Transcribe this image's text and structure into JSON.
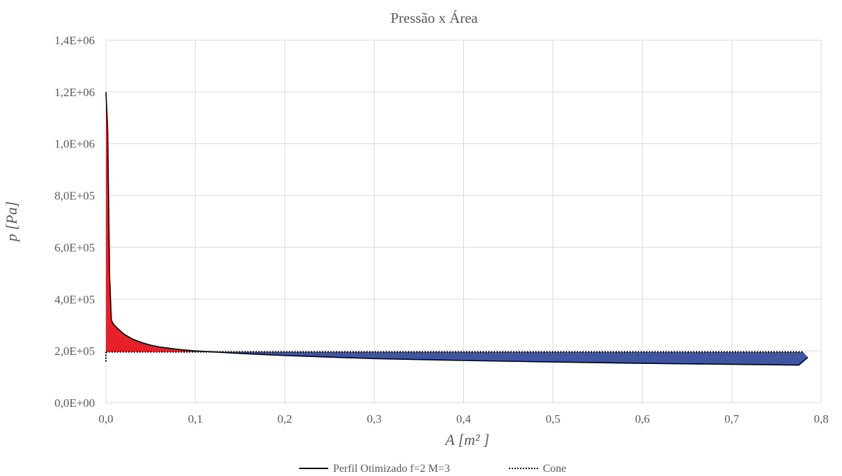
{
  "chart_data": {
    "type": "area",
    "title": "Pressão x Área",
    "xlabel": "A [m² ]",
    "ylabel": "p [Pa]",
    "xlim": [
      0,
      0.8
    ],
    "ylim": [
      0,
      1400000
    ],
    "x_ticks": [
      0,
      0.1,
      0.2,
      0.3,
      0.4,
      0.5,
      0.6,
      0.7,
      0.8
    ],
    "y_ticks": [
      0,
      200000,
      400000,
      600000,
      800000,
      1000000,
      1200000,
      1400000
    ],
    "x_tick_labels": [
      "0,0",
      "0,1",
      "0,2",
      "0,3",
      "0,4",
      "0,5",
      "0,6",
      "0,7",
      "0,8"
    ],
    "y_tick_labels": [
      "0,0E+00",
      "2,0E+05",
      "4,0E+05",
      "6,0E+05",
      "8,0E+05",
      "1,0E+06",
      "1,2E+06",
      "1,4E+06"
    ],
    "grid": true,
    "legend_position": "bottom",
    "fill_colors": {
      "above_cone": "#e8202a",
      "below_cone": "#3f55a0"
    },
    "series": [
      {
        "name": "Perfil Otimizado f=2 M=3",
        "style": "solid",
        "color": "#000000",
        "x": [
          0.0,
          0.002,
          0.004,
          0.006,
          0.008,
          0.012,
          0.02,
          0.03,
          0.04,
          0.05,
          0.06,
          0.08,
          0.1,
          0.12,
          0.15,
          0.2,
          0.3,
          0.4,
          0.5,
          0.6,
          0.7,
          0.75,
          0.775,
          0.785,
          0.78
        ],
        "y": [
          1200000,
          1050000,
          500000,
          320000,
          305000,
          290000,
          265000,
          245000,
          232000,
          222000,
          215000,
          206000,
          200000,
          196000,
          190000,
          182000,
          170000,
          163000,
          157000,
          152000,
          148000,
          146000,
          145000,
          175000,
          195000
        ]
      },
      {
        "name": "Cone",
        "style": "dotted",
        "color": "#000000",
        "x": [
          0.0,
          0.78
        ],
        "y": [
          196000,
          196000
        ]
      }
    ]
  }
}
